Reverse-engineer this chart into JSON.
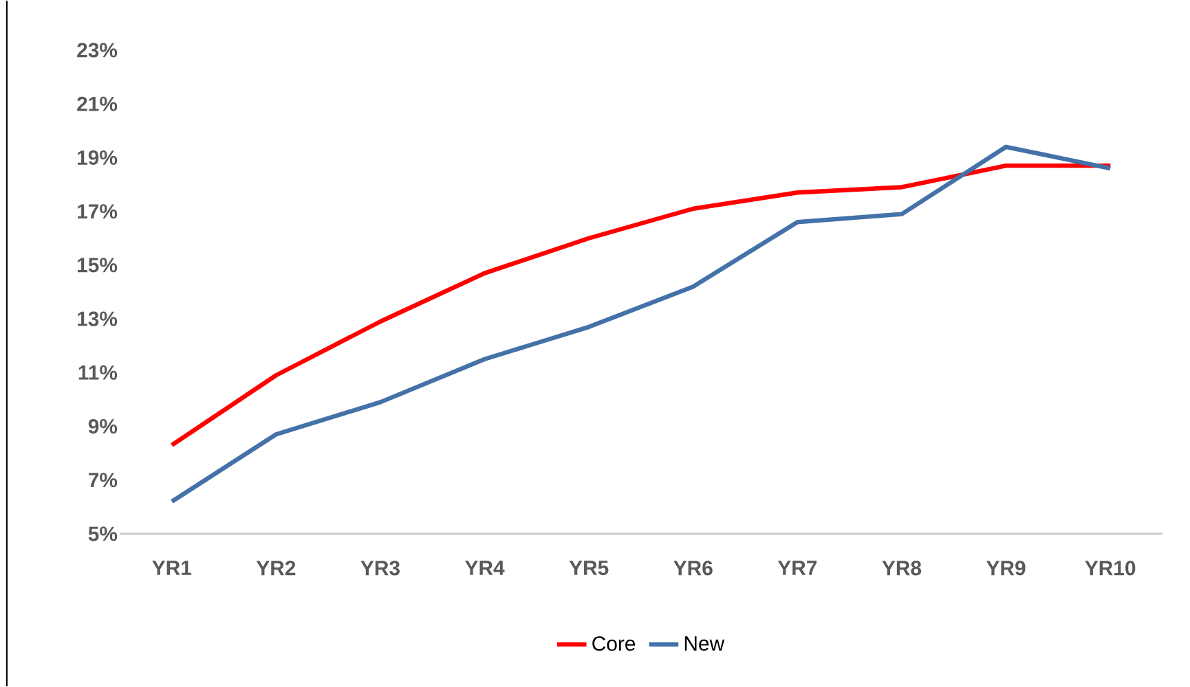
{
  "chart_data": {
    "type": "line",
    "categories": [
      "YR1",
      "YR2",
      "YR3",
      "YR4",
      "YR5",
      "YR6",
      "YR7",
      "YR8",
      "YR9",
      "YR10"
    ],
    "series": [
      {
        "name": "Core",
        "color": "#ff0000",
        "values": [
          8.3,
          10.9,
          12.9,
          14.7,
          16.0,
          17.1,
          17.7,
          17.9,
          18.7,
          18.7
        ]
      },
      {
        "name": "New",
        "color": "#4472a8",
        "values": [
          6.2,
          8.7,
          9.9,
          11.5,
          12.7,
          14.2,
          16.6,
          16.9,
          19.4,
          18.6
        ]
      }
    ],
    "ylim": [
      5,
      23
    ],
    "yticks": [
      {
        "value": 5,
        "label": "5%"
      },
      {
        "value": 7,
        "label": "7%"
      },
      {
        "value": 9,
        "label": "9%"
      },
      {
        "value": 11,
        "label": "11%"
      },
      {
        "value": 13,
        "label": "13%"
      },
      {
        "value": 15,
        "label": "15%"
      },
      {
        "value": 17,
        "label": "17%"
      },
      {
        "value": 19,
        "label": "19%"
      },
      {
        "value": 21,
        "label": "21%"
      },
      {
        "value": 23,
        "label": "23%"
      }
    ],
    "legend": "bottom",
    "grid": false,
    "marker": "none",
    "line_style": "solid"
  }
}
